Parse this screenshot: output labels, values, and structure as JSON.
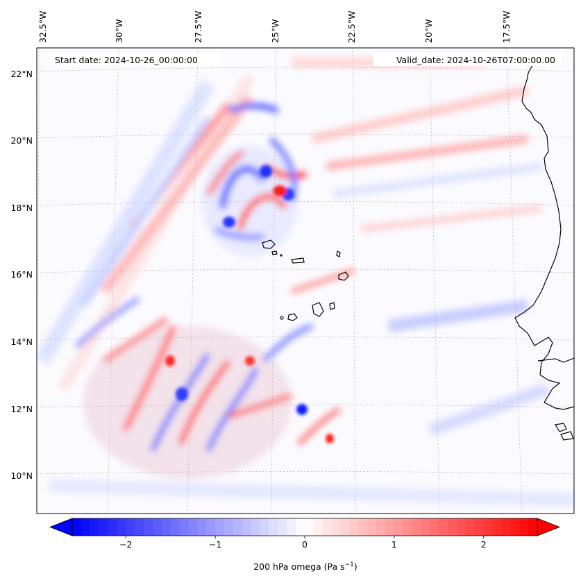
{
  "map": {
    "start_date_label": "Start date: 2024-10-26_00:00:00",
    "valid_date_label": "Valid_date: 2024-10-26T07:00:00.00",
    "lon_labels": [
      "32.5°W",
      "30°W",
      "27.5°W",
      "25°W",
      "22.5°W",
      "20°W",
      "17.5°W"
    ],
    "lat_labels": [
      "22°N",
      "20°N",
      "18°N",
      "16°N",
      "14°N",
      "12°N",
      "10°N"
    ],
    "field": "200 hPa omega"
  },
  "colorbar": {
    "label_main": "200 hPa omega (Pa s",
    "label_exp": "−1",
    "label_close": ")",
    "ticks": [
      "−2",
      "−1",
      "0",
      "1",
      "2"
    ],
    "tick_values": [
      -2,
      -1,
      0,
      1,
      2
    ],
    "range": [
      -2.6,
      2.6
    ],
    "colormap": "bwr",
    "low_color": "#0000ff",
    "mid_color": "#ffffff",
    "high_color": "#ff0000"
  }
}
